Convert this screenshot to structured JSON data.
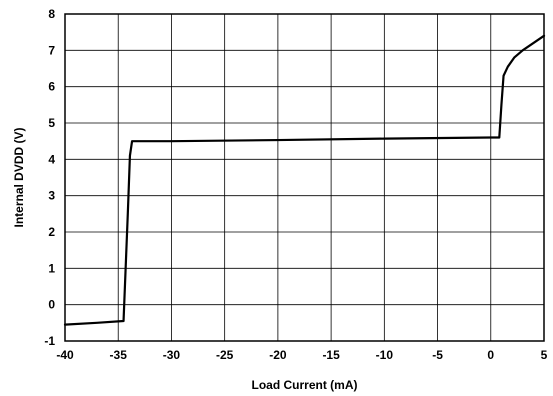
{
  "chart_data": {
    "type": "line",
    "xlabel": "Load Current (mA)",
    "ylabel": "Internal DVDD (V)",
    "xlim": [
      -40,
      5
    ],
    "ylim": [
      -1,
      8
    ],
    "xticks": [
      "-40",
      "-35",
      "-30",
      "-25",
      "-20",
      "-15",
      "-10",
      "-5",
      "0",
      "5"
    ],
    "yticks": [
      "-1",
      "0",
      "1",
      "2",
      "3",
      "4",
      "5",
      "6",
      "7",
      "8"
    ],
    "grid": true,
    "series": [
      {
        "x": [
          -40,
          -37,
          -34.5,
          -34.1,
          -33.9,
          -33.7,
          -30,
          -20,
          -10,
          0,
          0.8,
          1.0,
          1.2,
          1.6,
          2.2,
          3,
          4,
          5
        ],
        "y": [
          -0.55,
          -0.5,
          -0.45,
          2.5,
          4.1,
          4.5,
          4.5,
          4.53,
          4.57,
          4.6,
          4.6,
          5.5,
          6.3,
          6.55,
          6.8,
          7.0,
          7.2,
          7.4
        ],
        "color": "#000000"
      }
    ]
  }
}
